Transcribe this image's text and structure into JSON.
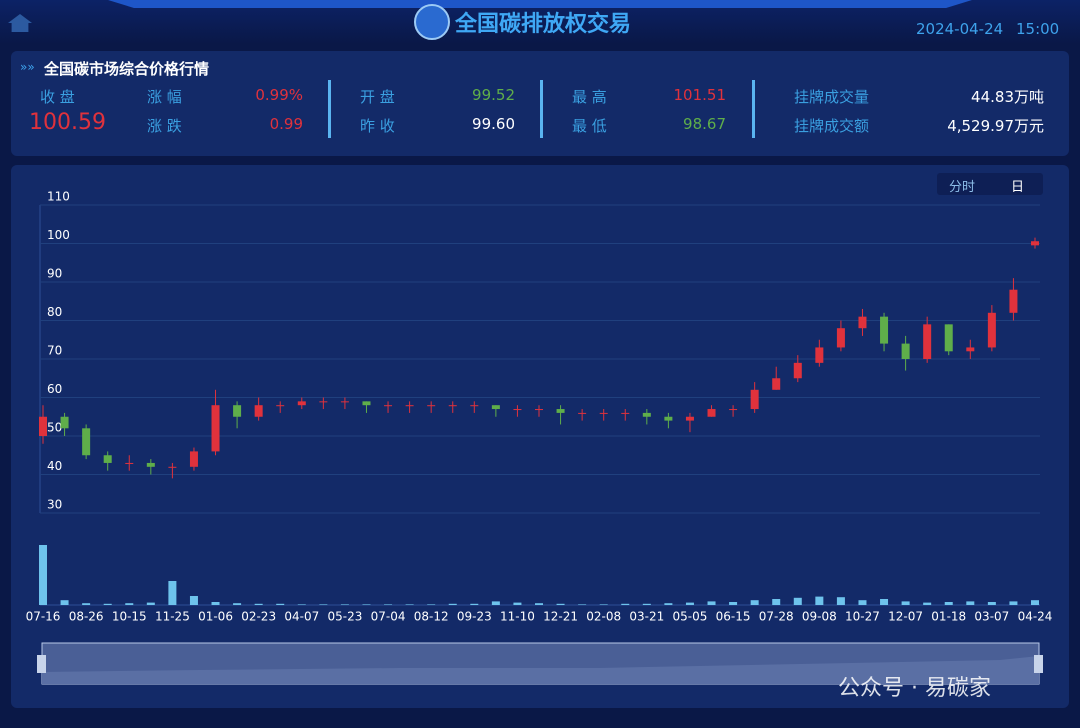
{
  "header": {
    "title": "全国碳排放权交易",
    "date": "2024-04-24",
    "time": "15:00"
  },
  "quote": {
    "title": "全国碳市场综合价格行情",
    "items": [
      {
        "label": "收 盘",
        "value": "100.59"
      },
      {
        "label": "涨 幅",
        "value": "0.99%"
      },
      {
        "label": "涨 跌",
        "value": "0.99"
      },
      {
        "label": "开 盘",
        "value": "99.52"
      },
      {
        "label": "昨 收",
        "value": "99.60"
      },
      {
        "label": "最 高",
        "value": "101.51"
      },
      {
        "label": "最 低",
        "value": "98.67"
      },
      {
        "label": "挂牌成交量",
        "value": "44.83万吨"
      },
      {
        "label": "挂牌成交额",
        "value": "4,529.97万元"
      }
    ]
  },
  "tabs": [
    "分时",
    "日"
  ],
  "watermark": "公众号 · 易碳家",
  "chart_data": {
    "type": "candlestick",
    "categories": [
      "07-16",
      null,
      "08-26",
      null,
      "10-15",
      null,
      "11-25",
      null,
      "01-06",
      null,
      "02-23",
      null,
      "04-07",
      null,
      "05-23",
      null,
      "07-04",
      null,
      "08-12",
      null,
      "09-23",
      null,
      "11-10",
      null,
      "12-21",
      null,
      "02-08",
      null,
      "03-21",
      null,
      "05-05",
      null,
      "06-15",
      null,
      "07-28",
      null,
      "09-08",
      null,
      "10-27",
      null,
      "12-07",
      null,
      "01-18",
      null,
      "03-07",
      null,
      "04-24"
    ],
    "open": [
      50,
      55,
      52,
      45,
      43,
      43,
      42,
      42,
      46,
      58,
      55,
      58,
      58,
      59,
      59,
      59,
      58,
      58,
      58,
      58,
      58,
      58,
      57,
      57,
      57,
      56,
      56,
      56,
      56,
      55,
      54,
      55,
      57,
      57,
      62,
      65,
      69,
      73,
      78,
      81,
      74,
      70,
      79,
      72,
      73,
      82,
      99.52
    ],
    "high": [
      58,
      56,
      53,
      46,
      45,
      44,
      43,
      47,
      62,
      59,
      60,
      59,
      60,
      60,
      60,
      59,
      59,
      59,
      59,
      59,
      59,
      58,
      58,
      58,
      58,
      57,
      57,
      57,
      57,
      56,
      56,
      58,
      58,
      64,
      68,
      71,
      75,
      80,
      83,
      82,
      76,
      81,
      79,
      75,
      84,
      91,
      101.51
    ],
    "low": [
      48,
      50,
      44,
      41,
      41,
      40,
      39,
      41,
      45,
      52,
      54,
      56,
      57,
      57,
      57,
      56,
      56,
      56,
      56,
      56,
      56,
      55,
      55,
      55,
      53,
      54,
      54,
      54,
      53,
      52,
      51,
      55,
      55,
      56,
      62,
      64,
      68,
      72,
      76,
      72,
      67,
      69,
      71,
      70,
      72,
      80,
      98.67
    ],
    "close": [
      55,
      52,
      45,
      43,
      43,
      42,
      42,
      46,
      58,
      55,
      58,
      58,
      59,
      59,
      59,
      58,
      58,
      58,
      58,
      58,
      58,
      57,
      57,
      57,
      56,
      56,
      56,
      56,
      55,
      54,
      55,
      57,
      57,
      62,
      65,
      69,
      73,
      78,
      81,
      74,
      70,
      79,
      72,
      73,
      82,
      88,
      100.59
    ],
    "volume": [
      100,
      8,
      3,
      2,
      3,
      4,
      40,
      15,
      5,
      3,
      2,
      2,
      1,
      1,
      1,
      1,
      1,
      1,
      1,
      2,
      2,
      6,
      4,
      3,
      2,
      1,
      1,
      2,
      2,
      3,
      4,
      6,
      5,
      8,
      10,
      12,
      14,
      13,
      8,
      10,
      6,
      4,
      5,
      6,
      5,
      6,
      8
    ],
    "ylim": [
      30,
      110
    ],
    "yticks": [
      30,
      40,
      50,
      60,
      70,
      80,
      90,
      100,
      110
    ],
    "grid": true,
    "up_color": "#e0323c",
    "down_color": "#5fae4a",
    "volume_color": "#6ec3ec"
  }
}
